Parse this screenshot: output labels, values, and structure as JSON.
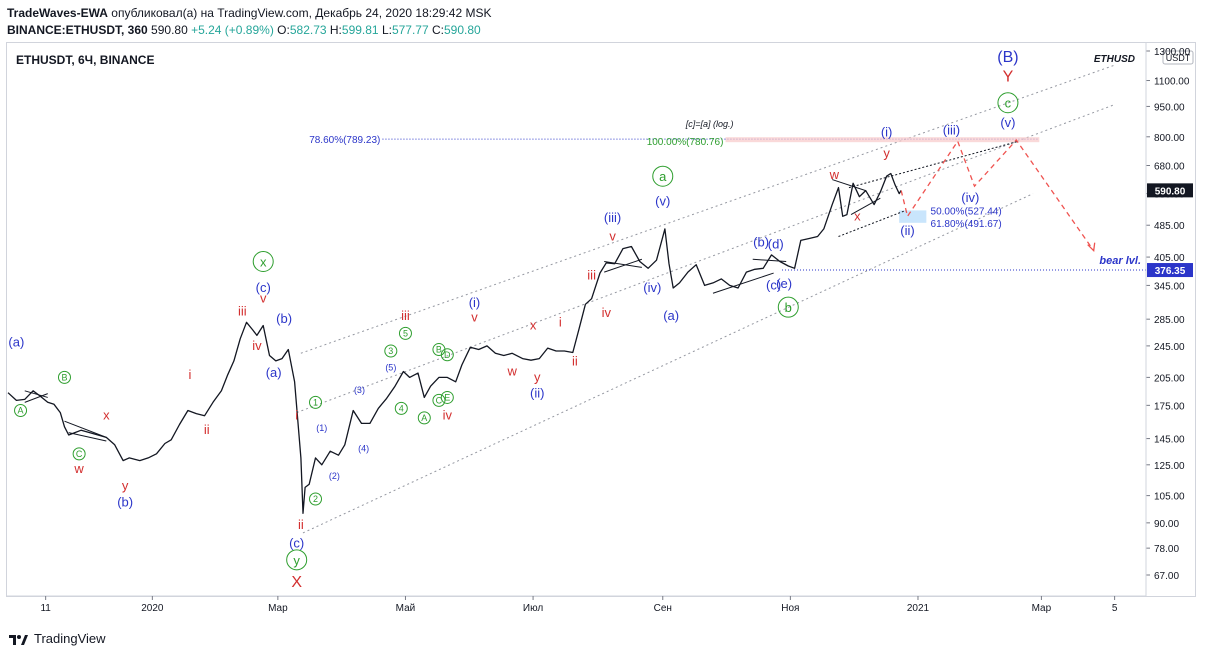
{
  "header": {
    "author": "TradeWaves-EWA",
    "published_text": "опубликовал(а) на TradingView.com, Декабрь 24, 2020 18:29:42 MSK",
    "symbol_line": "BINANCE:ETHUSDT, 360",
    "last": "590.80",
    "change": "+5.24 (+0.89%)",
    "o_label": "O:",
    "o_value": "582.73",
    "h_label": "H:",
    "h_value": "599.81",
    "l_label": "L:",
    "l_value": "577.77",
    "c_label": "C:",
    "c_value": "590.80"
  },
  "chart_title": "ETHUSDT, 6Ч, BINANCE",
  "watermark": "ETHUSD",
  "currency_badge": "USDT",
  "footer": {
    "brand": "TradingView"
  },
  "colors": {
    "blue_wave": "#2b35c9",
    "red_wave": "#d32f2f",
    "green_wave": "#2e9e2e",
    "price_badge": "#131722",
    "bear_badge": "#2b35c9"
  },
  "chart_data": {
    "type": "line",
    "scale": "log",
    "ylim": [
      60,
      1300
    ],
    "y_ticks": [
      67,
      78,
      90,
      105,
      125,
      145,
      175,
      205,
      245,
      285,
      345,
      405,
      485,
      580,
      680,
      800,
      950,
      1100,
      1300
    ],
    "y_tick_labels": [
      "67.00",
      "78.00",
      "90.00",
      "105.00",
      "125.00",
      "145.00",
      "175.00",
      "205.00",
      "245.00",
      "285.00",
      "345.00",
      "405.00",
      "485.00",
      "580.00",
      "680.00",
      "800.00",
      "950.00",
      "1100.00",
      "1300.00"
    ],
    "x_ticks": [
      {
        "label": "11",
        "date": "2019-11-11"
      },
      {
        "label": "2020",
        "date": "2020-01-01"
      },
      {
        "label": "Мар",
        "date": "2020-03-01"
      },
      {
        "label": "Май",
        "date": "2020-05-01"
      },
      {
        "label": "Июл",
        "date": "2020-07-01"
      },
      {
        "label": "Сен",
        "date": "2020-09-01"
      },
      {
        "label": "Ноя",
        "date": "2020-11-01"
      },
      {
        "label": "2021",
        "date": "2021-01-01"
      },
      {
        "label": "Мар",
        "date": "2021-03-01"
      },
      {
        "label": "5",
        "date": "2021-04-05"
      }
    ],
    "xlim": [
      "2019-10-24",
      "2021-04-20"
    ],
    "series": [
      {
        "values": [
          [
            "2019-10-24",
            188
          ],
          [
            "2019-10-28",
            180
          ],
          [
            "2019-11-01",
            181
          ],
          [
            "2019-11-05",
            190
          ],
          [
            "2019-11-08",
            185
          ],
          [
            "2019-11-12",
            178
          ],
          [
            "2019-11-15",
            176
          ],
          [
            "2019-11-18",
            168
          ],
          [
            "2019-11-20",
            155
          ],
          [
            "2019-11-22",
            148
          ],
          [
            "2019-11-25",
            150
          ],
          [
            "2019-11-28",
            152
          ],
          [
            "2019-12-02",
            150
          ],
          [
            "2019-12-06",
            148
          ],
          [
            "2019-12-10",
            146
          ],
          [
            "2019-12-14",
            140
          ],
          [
            "2019-12-18",
            128
          ],
          [
            "2019-12-21",
            130
          ],
          [
            "2019-12-26",
            128
          ],
          [
            "2019-12-30",
            130
          ],
          [
            "2020-01-03",
            133
          ],
          [
            "2020-01-07",
            141
          ],
          [
            "2020-01-10",
            144
          ],
          [
            "2020-01-14",
            157
          ],
          [
            "2020-01-18",
            170
          ],
          [
            "2020-01-22",
            167
          ],
          [
            "2020-01-26",
            165
          ],
          [
            "2020-01-30",
            178
          ],
          [
            "2020-02-03",
            190
          ],
          [
            "2020-02-06",
            208
          ],
          [
            "2020-02-09",
            225
          ],
          [
            "2020-02-12",
            255
          ],
          [
            "2020-02-15",
            280
          ],
          [
            "2020-02-18",
            268
          ],
          [
            "2020-02-20",
            260
          ],
          [
            "2020-02-23",
            275
          ],
          [
            "2020-02-26",
            232
          ],
          [
            "2020-02-29",
            225
          ],
          [
            "2020-03-03",
            228
          ],
          [
            "2020-03-06",
            240
          ],
          [
            "2020-03-09",
            200
          ],
          [
            "2020-03-12",
            130
          ],
          [
            "2020-03-13",
            95
          ],
          [
            "2020-03-14",
            110
          ],
          [
            "2020-03-16",
            112
          ],
          [
            "2020-03-19",
            130
          ],
          [
            "2020-03-22",
            125
          ],
          [
            "2020-03-26",
            135
          ],
          [
            "2020-03-30",
            132
          ],
          [
            "2020-04-02",
            140
          ],
          [
            "2020-04-06",
            170
          ],
          [
            "2020-04-10",
            158
          ],
          [
            "2020-04-14",
            158
          ],
          [
            "2020-04-18",
            172
          ],
          [
            "2020-04-22",
            182
          ],
          [
            "2020-04-26",
            195
          ],
          [
            "2020-04-30",
            212
          ],
          [
            "2020-05-03",
            205
          ],
          [
            "2020-05-07",
            210
          ],
          [
            "2020-05-10",
            183
          ],
          [
            "2020-05-13",
            195
          ],
          [
            "2020-05-17",
            205
          ],
          [
            "2020-05-21",
            205
          ],
          [
            "2020-05-25",
            200
          ],
          [
            "2020-05-28",
            220
          ],
          [
            "2020-06-01",
            243
          ],
          [
            "2020-06-05",
            240
          ],
          [
            "2020-06-09",
            245
          ],
          [
            "2020-06-13",
            235
          ],
          [
            "2020-06-17",
            232
          ],
          [
            "2020-06-21",
            235
          ],
          [
            "2020-06-26",
            228
          ],
          [
            "2020-06-30",
            226
          ],
          [
            "2020-07-04",
            228
          ],
          [
            "2020-07-08",
            242
          ],
          [
            "2020-07-12",
            238
          ],
          [
            "2020-07-16",
            238
          ],
          [
            "2020-07-20",
            236
          ],
          [
            "2020-07-23",
            270
          ],
          [
            "2020-07-26",
            310
          ],
          [
            "2020-07-29",
            320
          ],
          [
            "2020-08-02",
            370
          ],
          [
            "2020-08-05",
            392
          ],
          [
            "2020-08-09",
            390
          ],
          [
            "2020-08-13",
            425
          ],
          [
            "2020-08-17",
            430
          ],
          [
            "2020-08-21",
            395
          ],
          [
            "2020-08-25",
            380
          ],
          [
            "2020-08-29",
            398
          ],
          [
            "2020-09-02",
            475
          ],
          [
            "2020-09-04",
            390
          ],
          [
            "2020-09-06",
            340
          ],
          [
            "2020-09-09",
            350
          ],
          [
            "2020-09-13",
            372
          ],
          [
            "2020-09-17",
            388
          ],
          [
            "2020-09-21",
            345
          ],
          [
            "2020-09-25",
            350
          ],
          [
            "2020-09-29",
            358
          ],
          [
            "2020-10-03",
            345
          ],
          [
            "2020-10-07",
            340
          ],
          [
            "2020-10-11",
            372
          ],
          [
            "2020-10-15",
            378
          ],
          [
            "2020-10-19",
            380
          ],
          [
            "2020-10-23",
            410
          ],
          [
            "2020-10-27",
            395
          ],
          [
            "2020-10-31",
            385
          ],
          [
            "2020-11-03",
            380
          ],
          [
            "2020-11-06",
            445
          ],
          [
            "2020-11-10",
            450
          ],
          [
            "2020-11-14",
            455
          ],
          [
            "2020-11-17",
            475
          ],
          [
            "2020-11-21",
            545
          ],
          [
            "2020-11-24",
            600
          ],
          [
            "2020-11-26",
            510
          ],
          [
            "2020-11-28",
            515
          ],
          [
            "2020-12-01",
            615
          ],
          [
            "2020-12-04",
            570
          ],
          [
            "2020-12-07",
            590
          ],
          [
            "2020-12-11",
            545
          ],
          [
            "2020-12-14",
            585
          ],
          [
            "2020-12-17",
            640
          ],
          [
            "2020-12-19",
            650
          ],
          [
            "2020-12-21",
            610
          ],
          [
            "2020-12-23",
            580
          ],
          [
            "2020-12-24",
            590.8
          ]
        ]
      }
    ],
    "levels": [
      {
        "label": "78.60%(789.23)",
        "value": 789.23
      },
      {
        "label": "100.00%(780.76)",
        "value": 780.76
      },
      {
        "label": "50.00%(527.44)",
        "value": 527.44
      },
      {
        "label": "61.80%(491.67)",
        "value": 491.67
      },
      {
        "label": "bear lvl.",
        "value": 376.35
      }
    ],
    "annotation_top": "[c]=[a] (log.)",
    "current_price": {
      "value": 590.8,
      "label": "590.80"
    },
    "bear_price": {
      "value": 376.35,
      "label": "376.35"
    },
    "wave_labels": [
      {
        "t": "(a)",
        "d": "2019-10-28",
        "v": 250,
        "c": "blue"
      },
      {
        "t": "A",
        "d": "2019-10-30",
        "v": 170,
        "c": "green",
        "circle": true
      },
      {
        "t": "B",
        "d": "2019-11-20",
        "v": 205,
        "c": "green",
        "circle": true
      },
      {
        "t": "x",
        "d": "2019-12-10",
        "v": 165,
        "c": "red"
      },
      {
        "t": "C",
        "d": "2019-11-27",
        "v": 133,
        "c": "green",
        "circle": true
      },
      {
        "t": "w",
        "d": "2019-11-27",
        "v": 122,
        "c": "red"
      },
      {
        "t": "y",
        "d": "2019-12-19",
        "v": 111,
        "c": "red"
      },
      {
        "t": "(b)",
        "d": "2019-12-19",
        "v": 101,
        "c": "blue"
      },
      {
        "t": "i",
        "d": "2020-01-19",
        "v": 208,
        "c": "red"
      },
      {
        "t": "ii",
        "d": "2020-01-27",
        "v": 152,
        "c": "red"
      },
      {
        "t": "iii",
        "d": "2020-02-13",
        "v": 298,
        "c": "red"
      },
      {
        "t": "iv",
        "d": "2020-02-20",
        "v": 245,
        "c": "red"
      },
      {
        "t": "v",
        "d": "2020-02-23",
        "v": 320,
        "c": "red"
      },
      {
        "t": "(c)",
        "d": "2020-02-23",
        "v": 340,
        "c": "blue"
      },
      {
        "t": "x",
        "d": "2020-02-23",
        "v": 395,
        "c": "green",
        "circle": true
      },
      {
        "t": "(b)",
        "d": "2020-03-04",
        "v": 285,
        "c": "blue"
      },
      {
        "t": "(a)",
        "d": "2020-02-28",
        "v": 210,
        "c": "blue"
      },
      {
        "t": "i",
        "d": "2020-03-10",
        "v": 165,
        "c": "red"
      },
      {
        "t": "ii",
        "d": "2020-03-12",
        "v": 89,
        "c": "red"
      },
      {
        "t": "(c)",
        "d": "2020-03-10",
        "v": 80,
        "c": "blue"
      },
      {
        "t": "y",
        "d": "2020-03-10",
        "v": 73,
        "c": "green",
        "circle": true
      },
      {
        "t": "X",
        "d": "2020-03-10",
        "v": 64,
        "c": "red",
        "big": true
      },
      {
        "t": "1",
        "d": "2020-03-19",
        "v": 178,
        "c": "green",
        "circle": true
      },
      {
        "t": "(1)",
        "d": "2020-03-22",
        "v": 155,
        "c": "blue",
        "small": true
      },
      {
        "t": "(2)",
        "d": "2020-03-28",
        "v": 118,
        "c": "blue",
        "small": true
      },
      {
        "t": "2",
        "d": "2020-03-19",
        "v": 103,
        "c": "green",
        "circle": true
      },
      {
        "t": "(3)",
        "d": "2020-04-09",
        "v": 192,
        "c": "blue",
        "small": true
      },
      {
        "t": "(4)",
        "d": "2020-04-11",
        "v": 138,
        "c": "blue",
        "small": true
      },
      {
        "t": "(5)",
        "d": "2020-04-24",
        "v": 218,
        "c": "blue",
        "small": true
      },
      {
        "t": "3",
        "d": "2020-04-24",
        "v": 238,
        "c": "green",
        "circle": true
      },
      {
        "t": "4",
        "d": "2020-04-29",
        "v": 172,
        "c": "green",
        "circle": true
      },
      {
        "t": "5",
        "d": "2020-05-01",
        "v": 263,
        "c": "green",
        "circle": true
      },
      {
        "t": "iii",
        "d": "2020-05-01",
        "v": 290,
        "c": "red"
      },
      {
        "t": "A",
        "d": "2020-05-10",
        "v": 163,
        "c": "green",
        "circle": true
      },
      {
        "t": "B",
        "d": "2020-05-17",
        "v": 240,
        "c": "green",
        "circle": true
      },
      {
        "t": "C",
        "d": "2020-05-17",
        "v": 180,
        "c": "green",
        "circle": true
      },
      {
        "t": "D",
        "d": "2020-05-21",
        "v": 233,
        "c": "green",
        "circle": true
      },
      {
        "t": "E",
        "d": "2020-05-21",
        "v": 183,
        "c": "green",
        "circle": true
      },
      {
        "t": "iv",
        "d": "2020-05-21",
        "v": 165,
        "c": "red"
      },
      {
        "t": "(i)",
        "d": "2020-06-03",
        "v": 312,
        "c": "blue"
      },
      {
        "t": "v",
        "d": "2020-06-03",
        "v": 288,
        "c": "red"
      },
      {
        "t": "w",
        "d": "2020-06-21",
        "v": 212,
        "c": "red"
      },
      {
        "t": "x",
        "d": "2020-07-01",
        "v": 275,
        "c": "red"
      },
      {
        "t": "y",
        "d": "2020-07-03",
        "v": 205,
        "c": "red"
      },
      {
        "t": "(ii)",
        "d": "2020-07-03",
        "v": 187,
        "c": "blue"
      },
      {
        "t": "i",
        "d": "2020-07-14",
        "v": 280,
        "c": "red"
      },
      {
        "t": "ii",
        "d": "2020-07-21",
        "v": 224,
        "c": "red"
      },
      {
        "t": "iii",
        "d": "2020-07-29",
        "v": 365,
        "c": "red"
      },
      {
        "t": "iv",
        "d": "2020-08-05",
        "v": 295,
        "c": "red"
      },
      {
        "t": "(iii)",
        "d": "2020-08-08",
        "v": 505,
        "c": "blue"
      },
      {
        "t": "v",
        "d": "2020-08-08",
        "v": 455,
        "c": "red"
      },
      {
        "t": "(iv)",
        "d": "2020-08-27",
        "v": 340,
        "c": "blue"
      },
      {
        "t": "a",
        "d": "2020-09-01",
        "v": 640,
        "c": "green",
        "circle": true
      },
      {
        "t": "(v)",
        "d": "2020-09-01",
        "v": 555,
        "c": "blue"
      },
      {
        "t": "(a)",
        "d": "2020-09-05",
        "v": 290,
        "c": "blue"
      },
      {
        "t": "(b)",
        "d": "2020-10-18",
        "v": 440,
        "c": "blue"
      },
      {
        "t": "(d)",
        "d": "2020-10-25",
        "v": 435,
        "c": "blue"
      },
      {
        "t": "(c)",
        "d": "2020-10-24",
        "v": 345,
        "c": "blue"
      },
      {
        "t": "(e)",
        "d": "2020-10-29",
        "v": 348,
        "c": "blue"
      },
      {
        "t": "b",
        "d": "2020-10-31",
        "v": 305,
        "c": "green",
        "circle": true
      },
      {
        "t": "w",
        "d": "2020-11-22",
        "v": 645,
        "c": "red"
      },
      {
        "t": "x",
        "d": "2020-12-03",
        "v": 510,
        "c": "red"
      },
      {
        "t": "(i)",
        "d": "2020-12-17",
        "v": 820,
        "c": "blue"
      },
      {
        "t": "y",
        "d": "2020-12-17",
        "v": 728,
        "c": "red"
      },
      {
        "t": "(ii)",
        "d": "2020-12-27",
        "v": 470,
        "c": "blue"
      },
      {
        "t": "(iii)",
        "d": "2021-01-17",
        "v": 830,
        "c": "blue"
      },
      {
        "t": "(iv)",
        "d": "2021-01-26",
        "v": 565,
        "c": "blue"
      },
      {
        "t": "(v)",
        "d": "2021-02-13",
        "v": 865,
        "c": "blue"
      },
      {
        "t": "c",
        "d": "2021-02-13",
        "v": 970,
        "c": "green",
        "circle": true
      },
      {
        "t": "Y",
        "d": "2021-02-13",
        "v": 1120,
        "c": "red",
        "big": true
      },
      {
        "t": "(B)",
        "d": "2021-02-13",
        "v": 1250,
        "c": "blue",
        "big": true
      }
    ]
  }
}
